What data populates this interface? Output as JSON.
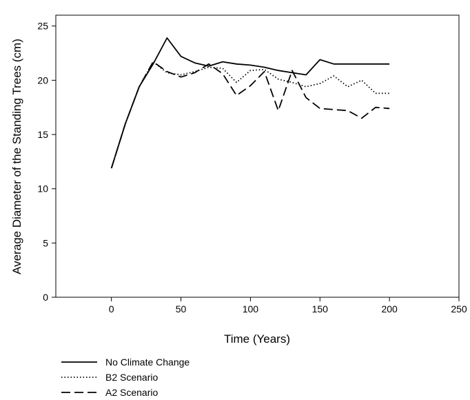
{
  "chart_data": {
    "type": "line",
    "title": "",
    "xlabel": "Time (Years)",
    "ylabel": "Average Diameter of the Standing Trees (cm)",
    "xlim": [
      -40,
      250
    ],
    "ylim": [
      0,
      26
    ],
    "xticks": [
      0,
      50,
      100,
      150,
      200,
      250
    ],
    "yticks": [
      0,
      5,
      10,
      15,
      20,
      25
    ],
    "x": [
      0,
      10,
      20,
      30,
      40,
      50,
      60,
      70,
      80,
      90,
      100,
      110,
      120,
      130,
      140,
      150,
      160,
      170,
      180,
      190,
      200
    ],
    "grid": false,
    "legend_position": "bottom-left",
    "series": [
      {
        "name": "No Climate Change",
        "line_style": "solid",
        "color": "#000000",
        "values": [
          11.9,
          16.0,
          19.4,
          21.5,
          23.9,
          22.2,
          21.6,
          21.3,
          21.7,
          21.5,
          21.4,
          21.2,
          20.9,
          20.7,
          20.5,
          21.9,
          21.5,
          21.5,
          21.5,
          21.5,
          21.5
        ]
      },
      {
        "name": "B2 Scenario",
        "line_style": "dotted",
        "color": "#000000",
        "values": [
          11.9,
          16.0,
          19.4,
          21.7,
          20.7,
          20.5,
          20.8,
          21.2,
          21.1,
          19.8,
          20.9,
          21.0,
          20.1,
          19.8,
          19.4,
          19.7,
          20.4,
          19.4,
          20.0,
          18.8,
          18.8
        ]
      },
      {
        "name": "A2 Scenario",
        "line_style": "dashed",
        "color": "#000000",
        "values": [
          11.9,
          16.0,
          19.4,
          21.7,
          20.8,
          20.3,
          20.7,
          21.5,
          20.6,
          18.6,
          19.5,
          20.8,
          17.2,
          20.9,
          18.4,
          17.4,
          17.3,
          17.2,
          16.5,
          17.5,
          17.4
        ]
      }
    ]
  }
}
